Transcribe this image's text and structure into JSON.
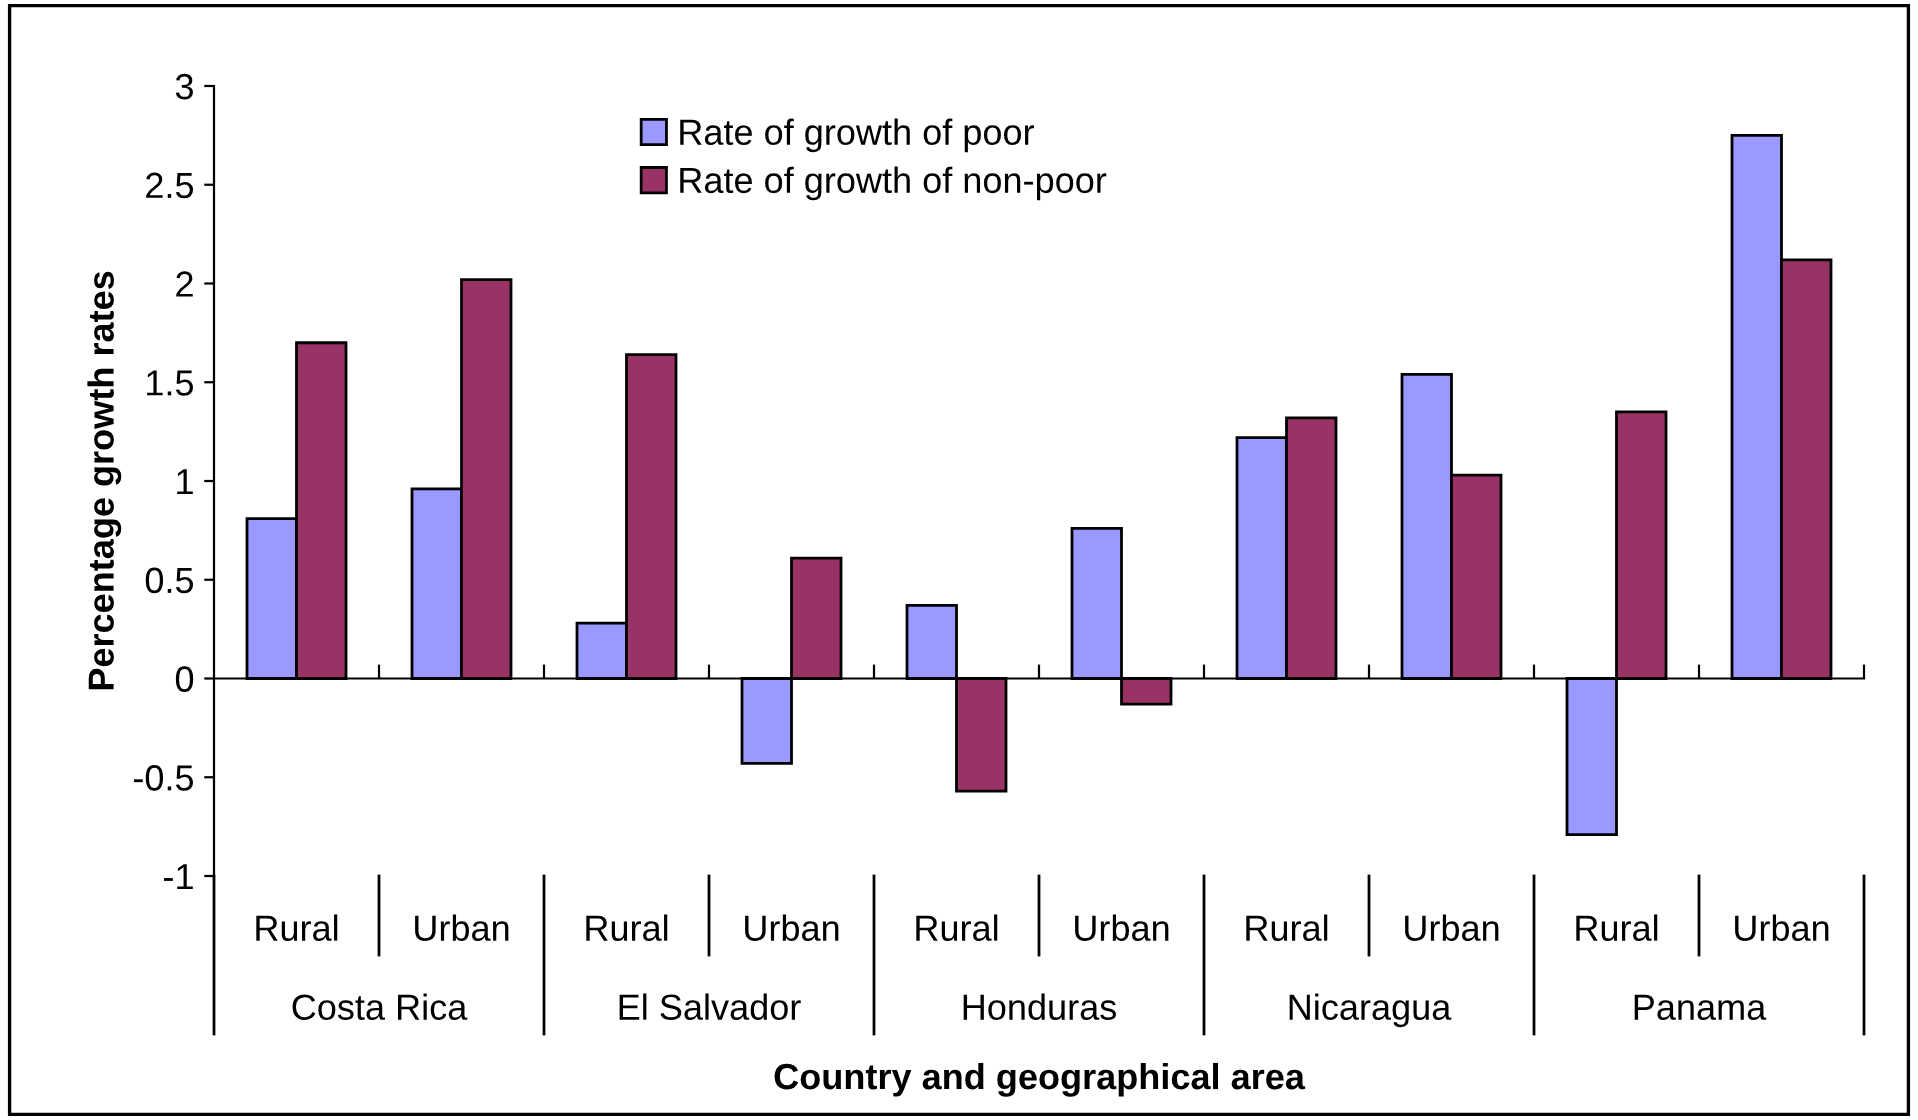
{
  "chart_data": {
    "type": "bar",
    "xlabel": "Country and geographical area",
    "ylabel": "Percentage growth rates",
    "categories": [
      "Rural",
      "Urban",
      "Rural",
      "Urban",
      "Rural",
      "Urban",
      "Rural",
      "Urban",
      "Rural",
      "Urban"
    ],
    "annotations": [
      "Costa Rica",
      "El Salvador",
      "Honduras",
      "Nicaragua",
      "Panama"
    ],
    "series": [
      {
        "name": "Rate of growth of poor",
        "color": "#9999ff",
        "values": [
          0.81,
          0.96,
          0.28,
          -0.43,
          0.37,
          0.76,
          1.22,
          1.54,
          -0.79,
          2.75
        ]
      },
      {
        "name": "Rate of growth of non-poor",
        "color": "#993366",
        "values": [
          1.7,
          2.02,
          1.64,
          0.61,
          -0.57,
          -0.13,
          1.32,
          1.03,
          1.35,
          2.12
        ]
      }
    ],
    "ylim": [
      -1,
      3
    ],
    "yticks": [
      -1,
      -0.5,
      0,
      0.5,
      1,
      1.5,
      2,
      2.5,
      3
    ],
    "legend": "top"
  }
}
